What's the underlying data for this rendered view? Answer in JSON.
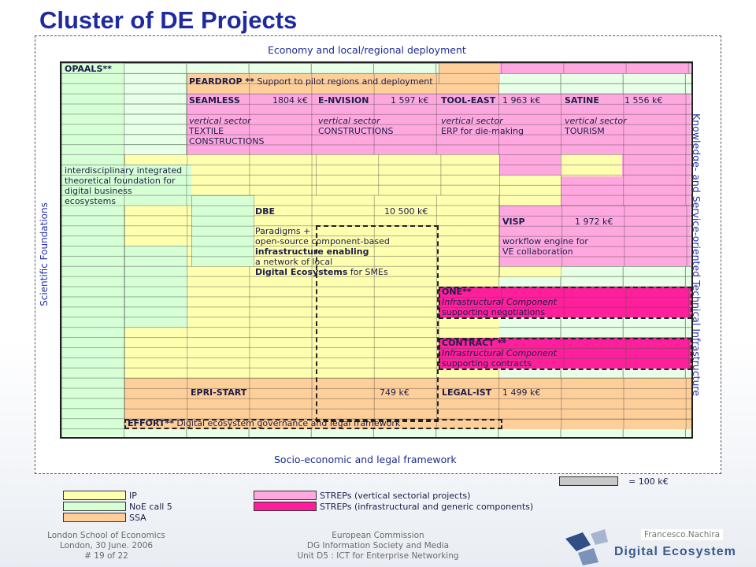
{
  "title": "Cluster of DE Projects",
  "top_label": "Economy and local/regional deployment",
  "bottom_label": "Socio-economic and legal framework",
  "left_label": "Scientific Foundations",
  "right_label": "Knowledge- and Service-oriented Technical Infrastructure",
  "projects": {
    "opaals": "OPAALS**",
    "peardrop": "PEARDROP **",
    "peardrop_desc": "Support to pilot regions and deployment",
    "seamless": "SEAMLESS",
    "seamless_cost": "1804 k€",
    "envision": "E-NVISION",
    "envision_cost": "1 597 k€",
    "tooleast": "TOOL-EAST",
    "tooleast_cost": "1 963 k€",
    "satine": "SATINE",
    "satine_cost": "1 556 k€",
    "vs1": "vertical sector",
    "vs1b": "TEXTILE",
    "vs1c": "CONSTRUCTIONS",
    "vs2": "vertical sector",
    "vs2b": "CONSTRUCTIONS",
    "vs3": "vertical sector",
    "vs3b": "ERP for die-making",
    "vs4": "vertical sector",
    "vs4b": "TOURISM",
    "inter1": "interdisciplinary integrated",
    "inter2": "theoretical foundation for",
    "inter3": "digital business",
    "inter4": "ecosystems",
    "dbe": "DBE",
    "dbe_cost": "10 500 k€",
    "visp": "VISP",
    "visp_cost": "1 972 k€",
    "dbe1": "Paradigms +",
    "dbe2": "open-source component-based",
    "dbe3": "infrastructure enabling",
    "dbe4": "a network of local",
    "dbe5": "Digital Ecosystems",
    "dbe5b": " for SMEs",
    "visp1": "workflow engine for",
    "visp2": "VE collaboration",
    "one": "ONE**",
    "one1": "Infrastructural Component",
    "one2": "supporting negotiations",
    "contract": "CONTRACT **",
    "contract1": "Infrastructural Component",
    "contract2": "supporting contracts",
    "epri": "EPRI-START",
    "epri_cost": "749 k€",
    "legal": "LEGAL-IST",
    "legal_cost": "1 499 k€",
    "effort": "EFFORT**",
    "effort_desc": "Digital ecosystem governance and legal framework"
  },
  "legend": {
    "ip": "IP",
    "noe": "NoE call 5",
    "ssa": "SSA",
    "strep_v": "STREPs (vertical sectorial projects)",
    "strep_i": "STREPs (infrastructural and generic components)",
    "scale": "= 100 k€"
  },
  "colors": {
    "ip": "#ffffb0",
    "noe": "#d6ffd6",
    "ssa": "#ffcf9a",
    "strep_v": "#ffa8e0",
    "strep_i": "#ff1f9c",
    "title": "#1f2aa0"
  },
  "footer_left": [
    "London School of Economics",
    "London, 30 June. 2006",
    "# 19 of 22"
  ],
  "footer_mid": [
    "European Commission",
    "DG Information Society and Media",
    "Unit D5 : ICT for Enterprise Networking"
  ],
  "author": "Francesco.Nachira",
  "logo_text": "Digital Ecosystem"
}
